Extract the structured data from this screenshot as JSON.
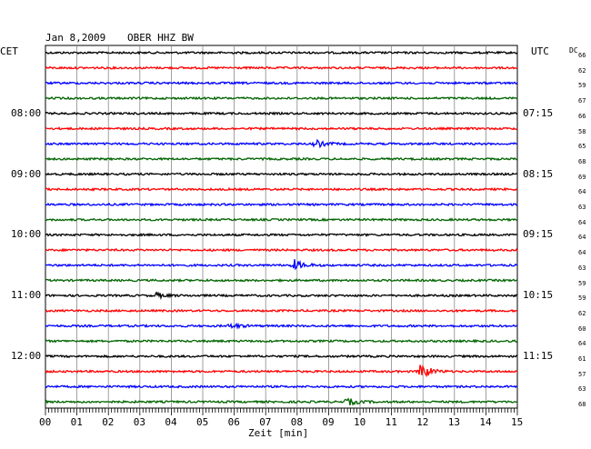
{
  "header": {
    "date": "Jan 8,2009",
    "station": "OBER HHZ BW"
  },
  "chart_data": {
    "type": "line",
    "left_axis_label": "CET",
    "right_axis_label": "UTC",
    "dc_label": "DC",
    "xlabel": "Zeit [min]",
    "xlim": [
      0,
      15
    ],
    "x_ticks": [
      "00",
      "01",
      "02",
      "03",
      "04",
      "05",
      "06",
      "07",
      "08",
      "09",
      "10",
      "11",
      "12",
      "13",
      "14",
      "15"
    ],
    "left_time_labels": [
      "08:00",
      "09:00",
      "10:00",
      "11:00",
      "12:00"
    ],
    "right_time_labels": [
      "07:15",
      "08:15",
      "09:15",
      "10:15",
      "11:15"
    ],
    "trace_colors": [
      "#000000",
      "#ff0000",
      "#0000ff",
      "#006400"
    ],
    "dc_values": [
      "66",
      "62",
      "59",
      "67",
      "66",
      "58",
      "65",
      "68",
      "69",
      "64",
      "63",
      "64",
      "64",
      "64",
      "63",
      "59",
      "59",
      "62",
      "60",
      "64",
      "61",
      "57",
      "63",
      "68"
    ],
    "events": [
      {
        "trace": 6,
        "minute": 8.6,
        "amplitude": 4
      },
      {
        "trace": 14,
        "minute": 7.9,
        "amplitude": 6
      },
      {
        "trace": 16,
        "minute": 3.5,
        "amplitude": 3
      },
      {
        "trace": 18,
        "minute": 5.9,
        "amplitude": 3
      },
      {
        "trace": 21,
        "minute": 11.9,
        "amplitude": 11
      },
      {
        "trace": 23,
        "minute": 9.6,
        "amplitude": 4
      }
    ]
  }
}
